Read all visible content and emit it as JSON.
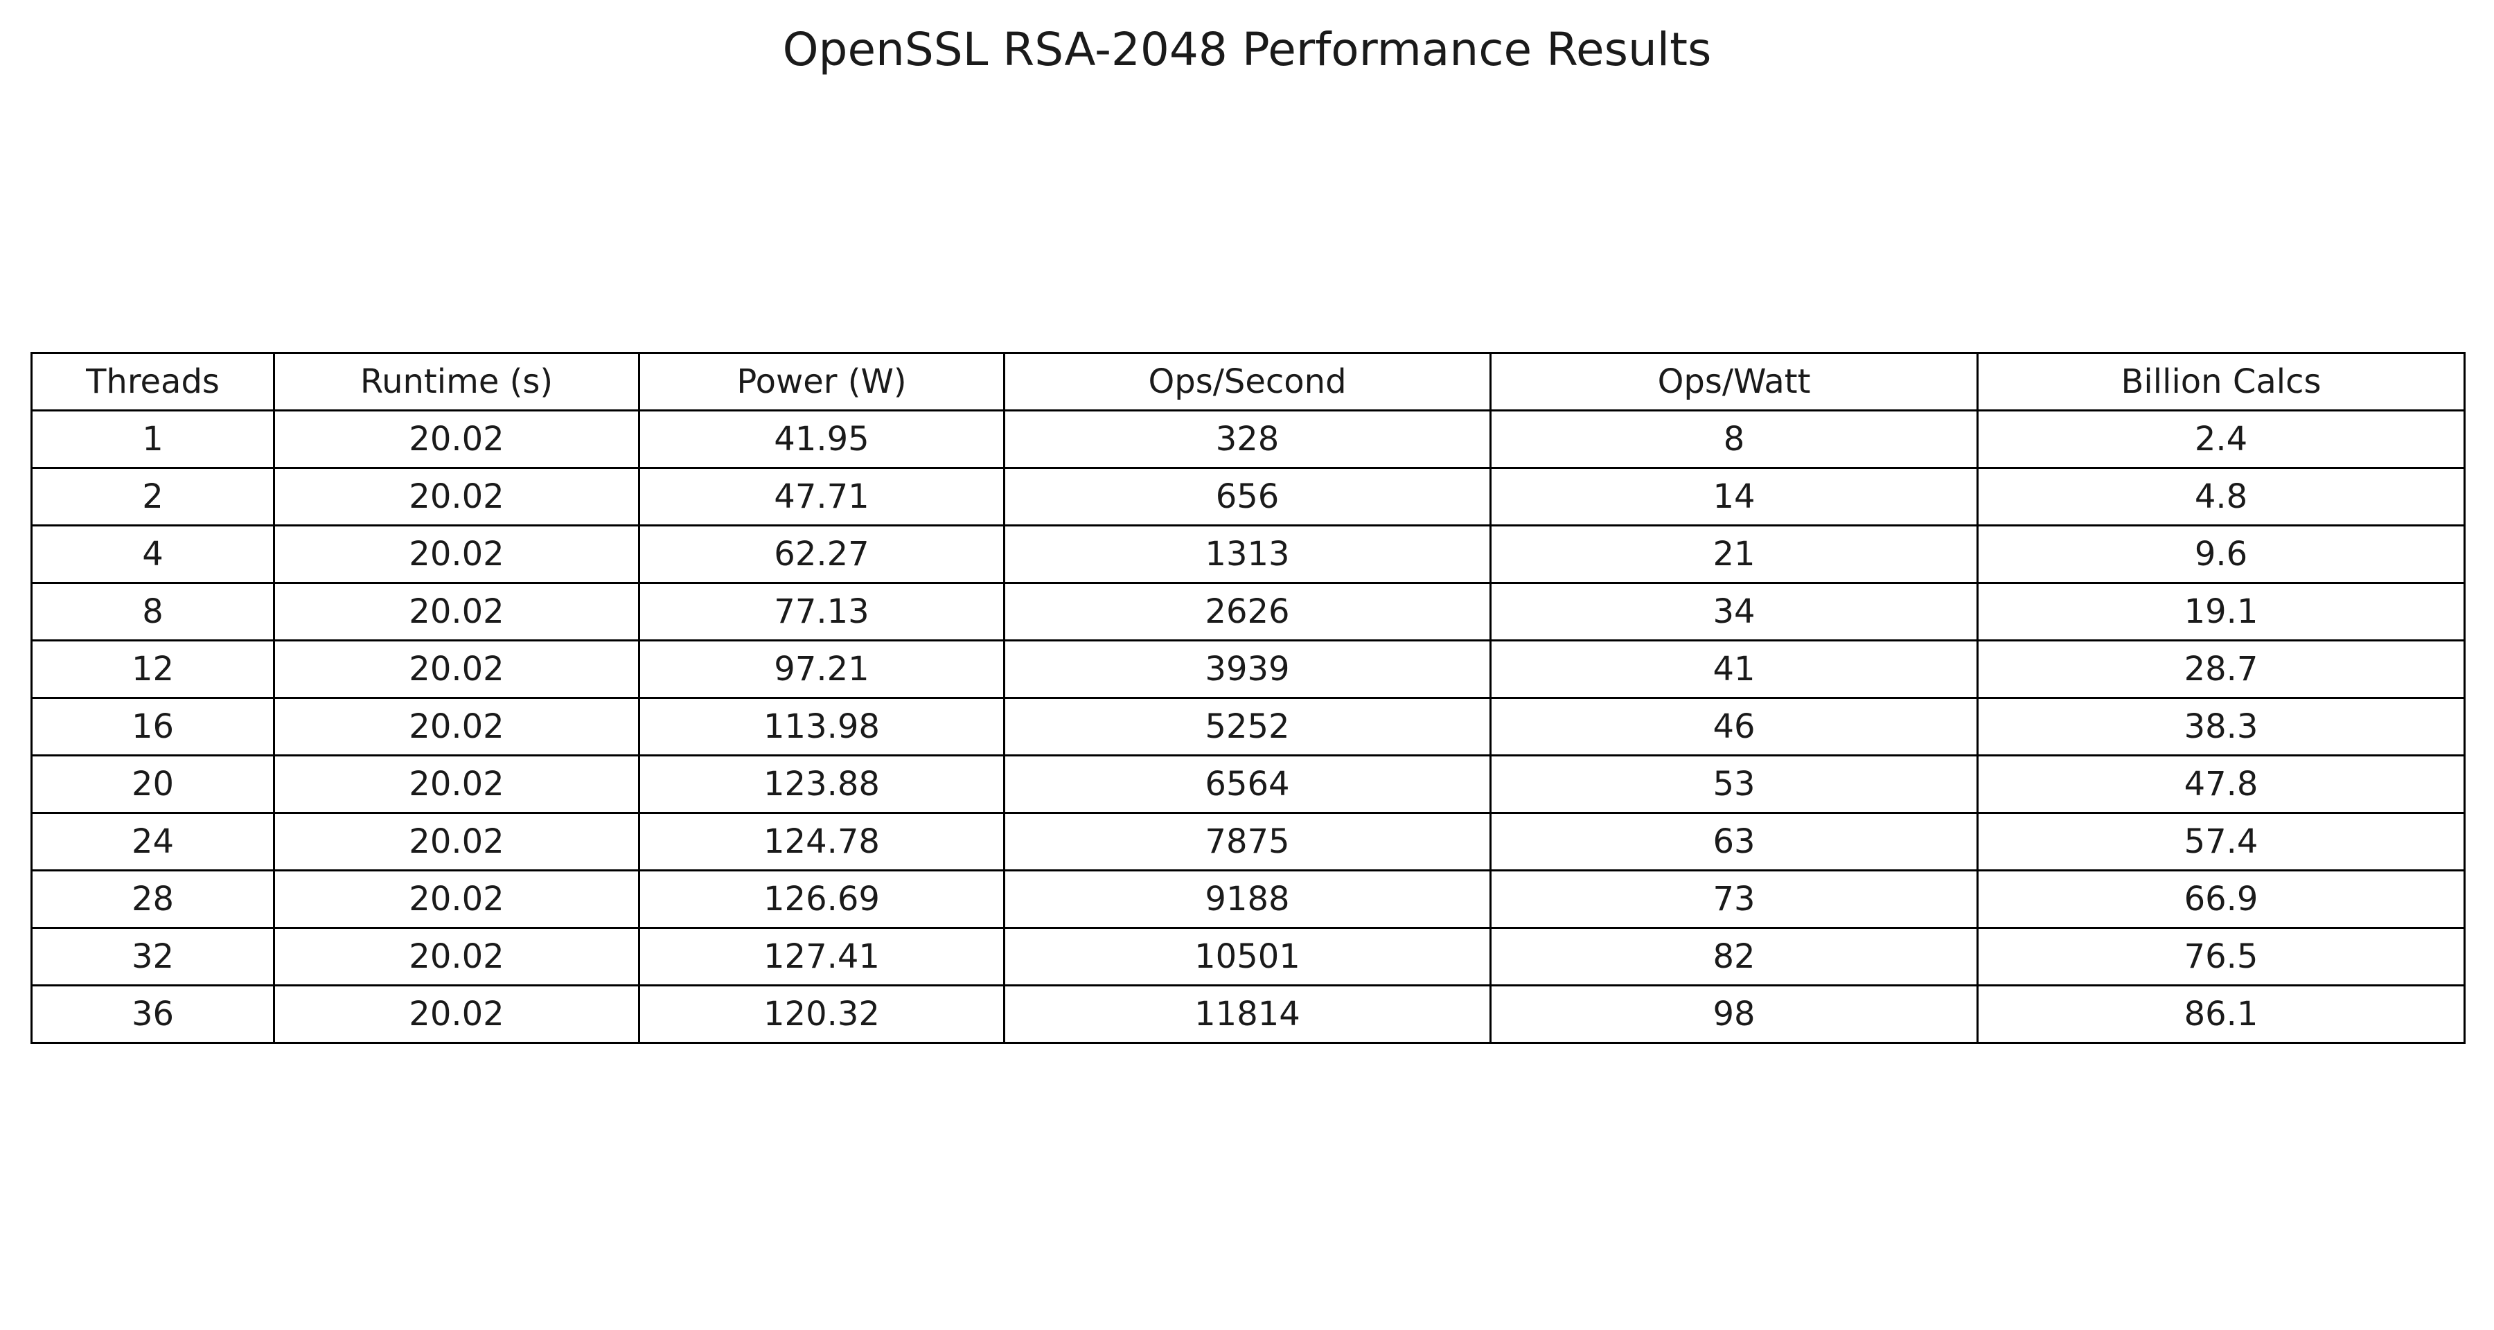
{
  "chart_data": {
    "type": "table",
    "title": "OpenSSL RSA-2048 Performance Results",
    "columns": [
      "Threads",
      "Runtime (s)",
      "Power (W)",
      "Ops/Second",
      "Ops/Watt",
      "Billion Calcs"
    ],
    "rows": [
      [
        "1",
        "20.02",
        "41.95",
        "328",
        "8",
        "2.4"
      ],
      [
        "2",
        "20.02",
        "47.71",
        "656",
        "14",
        "4.8"
      ],
      [
        "4",
        "20.02",
        "62.27",
        "1313",
        "21",
        "9.6"
      ],
      [
        "8",
        "20.02",
        "77.13",
        "2626",
        "34",
        "19.1"
      ],
      [
        "12",
        "20.02",
        "97.21",
        "3939",
        "41",
        "28.7"
      ],
      [
        "16",
        "20.02",
        "113.98",
        "5252",
        "46",
        "38.3"
      ],
      [
        "20",
        "20.02",
        "123.88",
        "6564",
        "53",
        "47.8"
      ],
      [
        "24",
        "20.02",
        "124.78",
        "7875",
        "63",
        "57.4"
      ],
      [
        "28",
        "20.02",
        "126.69",
        "9188",
        "73",
        "66.9"
      ],
      [
        "32",
        "20.02",
        "127.41",
        "10501",
        "82",
        "76.5"
      ],
      [
        "36",
        "20.02",
        "120.32",
        "11814",
        "98",
        "86.1"
      ]
    ]
  }
}
